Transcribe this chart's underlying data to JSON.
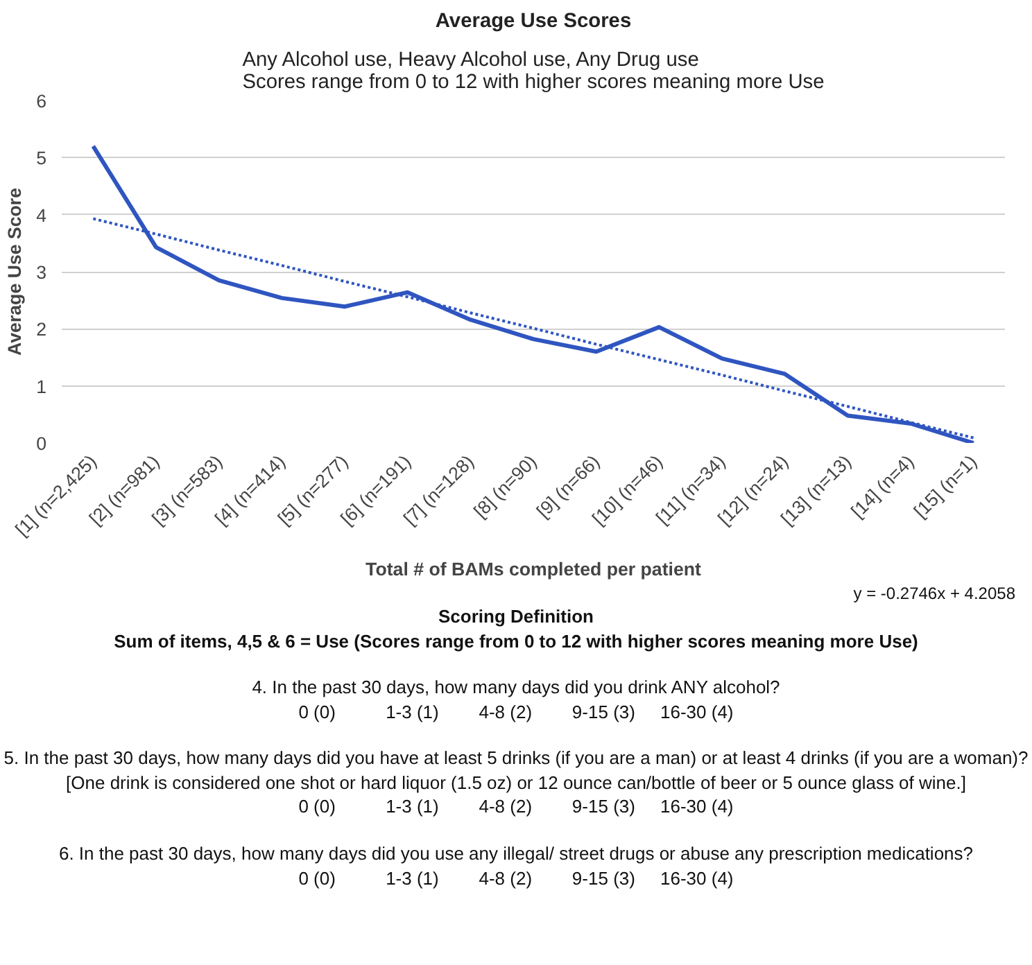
{
  "chart_data": {
    "type": "line",
    "title": "Average Use Scores",
    "subtitle": "Any Alcohol use, Heavy Alcohol use, Any Drug use\nScores range from 0 to 12 with higher scores meaning more Use",
    "xlabel": "Total # of BAMs completed per patient",
    "ylabel": "Average Use Score",
    "categories": [
      "[1] (n=2,425)",
      "[2] (n=981)",
      "[3] (n=583)",
      "[4] (n=414)",
      "[5] (n=277)",
      "[6] (n=191)",
      "[7] (n=128)",
      "[8] (n=90)",
      "[9] (n=66)",
      "[10] (n=46)",
      "[11] (n=34)",
      "[12] (n=24)",
      "[13] (n=13)",
      "[14] (n=4)",
      "[15] (n=1)"
    ],
    "series": [
      {
        "color": "#2f55c0",
        "line_style": "solid",
        "values": [
          5.2,
          3.43,
          2.85,
          2.54,
          2.39,
          2.64,
          2.16,
          1.82,
          1.6,
          2.03,
          1.48,
          1.21,
          0.48,
          0.34,
          0.0
        ]
      },
      {
        "type": "line",
        "color": "#2f55c0",
        "line_style": "dotted",
        "values": [
          3.93,
          3.66,
          3.38,
          3.11,
          2.83,
          2.56,
          2.28,
          2.01,
          1.73,
          1.46,
          1.19,
          0.91,
          0.64,
          0.36,
          0.09
        ]
      }
    ],
    "ylim": [
      0,
      6
    ],
    "yticks": [
      0,
      1,
      2,
      3,
      4,
      5,
      6
    ],
    "grid": "y",
    "annotations": [
      "y = -0.2746x + 4.2058",
      "Scoring Definition",
      "Sum of items, 4,5 & 6 = Use (Scores range from 0 to 12 with higher scores meaning more Use)",
      "4. In the past 30 days, how many days did you drink ANY alcohol?",
      "0 (0)          1-3 (1)        4-8 (2)        9-15 (3)     16-30 (4)",
      "5. In the past 30 days, how many days did you have at least 5 drinks (if you are a man) or at least 4 drinks (if you are a woman)? [One drink is considered one shot or hard liquor (1.5 oz) or 12 ounce can/bottle of beer or 5 ounce glass of wine.]",
      "0 (0)          1-3 (1)        4-8 (2)        9-15 (3)     16-30 (4)",
      "6. In the past 30 days, how many days did you use any illegal/ street drugs or abuse any prescription medications?",
      "0 (0)          1-3 (1)        4-8 (2)        9-15 (3)     16-30 (4)"
    ]
  }
}
